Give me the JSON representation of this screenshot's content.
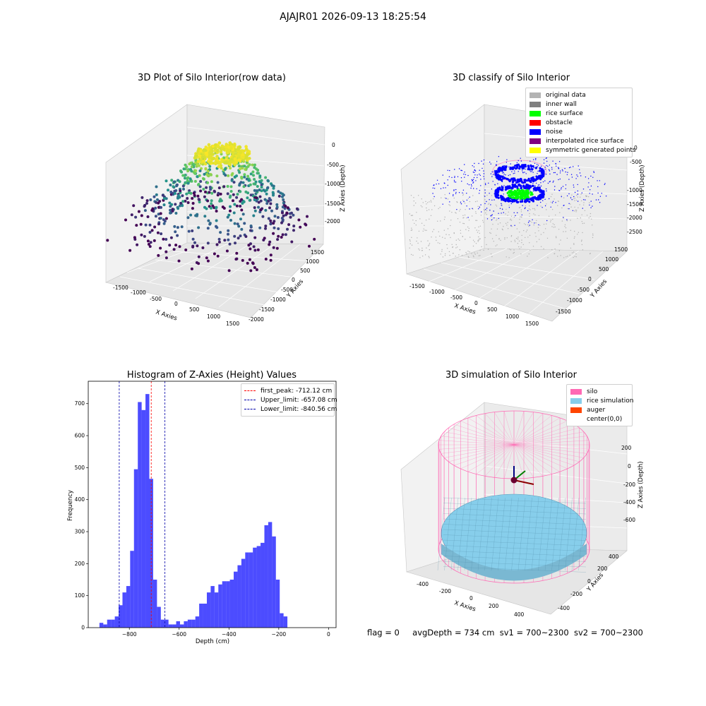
{
  "suptitle": "AJAJR01 2026-09-13 18:25:54",
  "footer": {
    "flag": "flag = 0",
    "avg": "avgDepth = 734 cm",
    "sv1": "sv1 = 700~2300",
    "sv2": "sv2 = 700~2300"
  },
  "chart_data": [
    {
      "type": "scatter",
      "title": "3D Plot of Silo Interior(row data)",
      "xlabel": "X Axies",
      "ylabel": "Y Axies",
      "zlabel": "Z Axies (Depth)",
      "x_ticks": [
        "-1500",
        "-1000",
        "-500",
        "0",
        "500",
        "1000",
        "1500"
      ],
      "y_ticks": [
        "-2000",
        "-1500",
        "-1000",
        "-500",
        "0",
        "500",
        "1000",
        "1500"
      ],
      "z_ticks": [
        "0",
        "-500",
        "-1000",
        "-1500",
        "-2000"
      ],
      "colormap": "viridis"
    },
    {
      "type": "scatter",
      "title": "3D classify of Silo Interior",
      "xlabel": "X Axies",
      "ylabel": "Y Axies",
      "zlabel": "Z Axies (Depth)",
      "x_ticks": [
        "-1500",
        "-1000",
        "-500",
        "0",
        "500",
        "1000",
        "1500"
      ],
      "y_ticks": [
        "-1500",
        "-1000",
        "-500",
        "0",
        "500",
        "1000",
        "1500"
      ],
      "z_ticks": [
        "0",
        "-500",
        "-1000",
        "-1500",
        "-2000",
        "-2500"
      ],
      "legend": [
        {
          "label": "original data",
          "color": "#b3b3b3"
        },
        {
          "label": "inner wall",
          "color": "#808080"
        },
        {
          "label": "rice surface",
          "color": "#00ff00"
        },
        {
          "label": "obstacle",
          "color": "#ff0000"
        },
        {
          "label": "noise",
          "color": "#0000ff"
        },
        {
          "label": "interpolated rice surface",
          "color": "#800080"
        },
        {
          "label": "symmetric generated points",
          "color": "#ffff00"
        }
      ]
    },
    {
      "type": "bar",
      "title": "Histogram of Z-Axies (Height) Values",
      "xlabel": "Depth (cm)",
      "ylabel": "Frequency",
      "xlim": [
        -965,
        30
      ],
      "ylim": [
        0,
        770
      ],
      "x_ticks": [
        -800,
        -600,
        -400,
        -200,
        0
      ],
      "y_ticks": [
        0,
        100,
        200,
        300,
        400,
        500,
        600,
        700
      ],
      "bin_start": -920,
      "bin_width": 15.4,
      "values": [
        15,
        10,
        25,
        25,
        35,
        70,
        110,
        130,
        240,
        495,
        705,
        680,
        730,
        465,
        150,
        65,
        25,
        25,
        10,
        10,
        20,
        10,
        20,
        25,
        25,
        35,
        75,
        75,
        110,
        130,
        110,
        135,
        145,
        145,
        150,
        175,
        195,
        215,
        235,
        235,
        250,
        255,
        265,
        320,
        330,
        285,
        150,
        45,
        35
      ],
      "bar_color": "#0000ff",
      "vlines": [
        {
          "x": -712.12,
          "label": "first_peak: -712.12 cm",
          "color": "#ff0000"
        },
        {
          "x": -657.08,
          "label": "Upper_limit: -657.08 cm",
          "color": "#0000aa"
        },
        {
          "x": -840.56,
          "label": "Lower_limit: -840.56 cm",
          "color": "#0000aa"
        }
      ]
    },
    {
      "type": "surface",
      "title": "3D simulation of Silo Interior",
      "xlabel": "X Axies",
      "ylabel": "Y Axies",
      "zlabel": "Z Axies (Depth)",
      "x_ticks": [
        "-400",
        "-200",
        "0",
        "200",
        "400"
      ],
      "y_ticks": [
        "-400",
        "-200",
        "0",
        "200",
        "400"
      ],
      "z_ticks": [
        "200",
        "0",
        "-200",
        "-400",
        "-600"
      ],
      "legend": [
        {
          "label": "silo",
          "color": "#ff69b4"
        },
        {
          "label": "rice simulation",
          "color": "#87ceeb"
        },
        {
          "label": "auger",
          "color": "#ff4500"
        },
        {
          "label": "center(0,0)",
          "color": "none"
        }
      ]
    }
  ]
}
